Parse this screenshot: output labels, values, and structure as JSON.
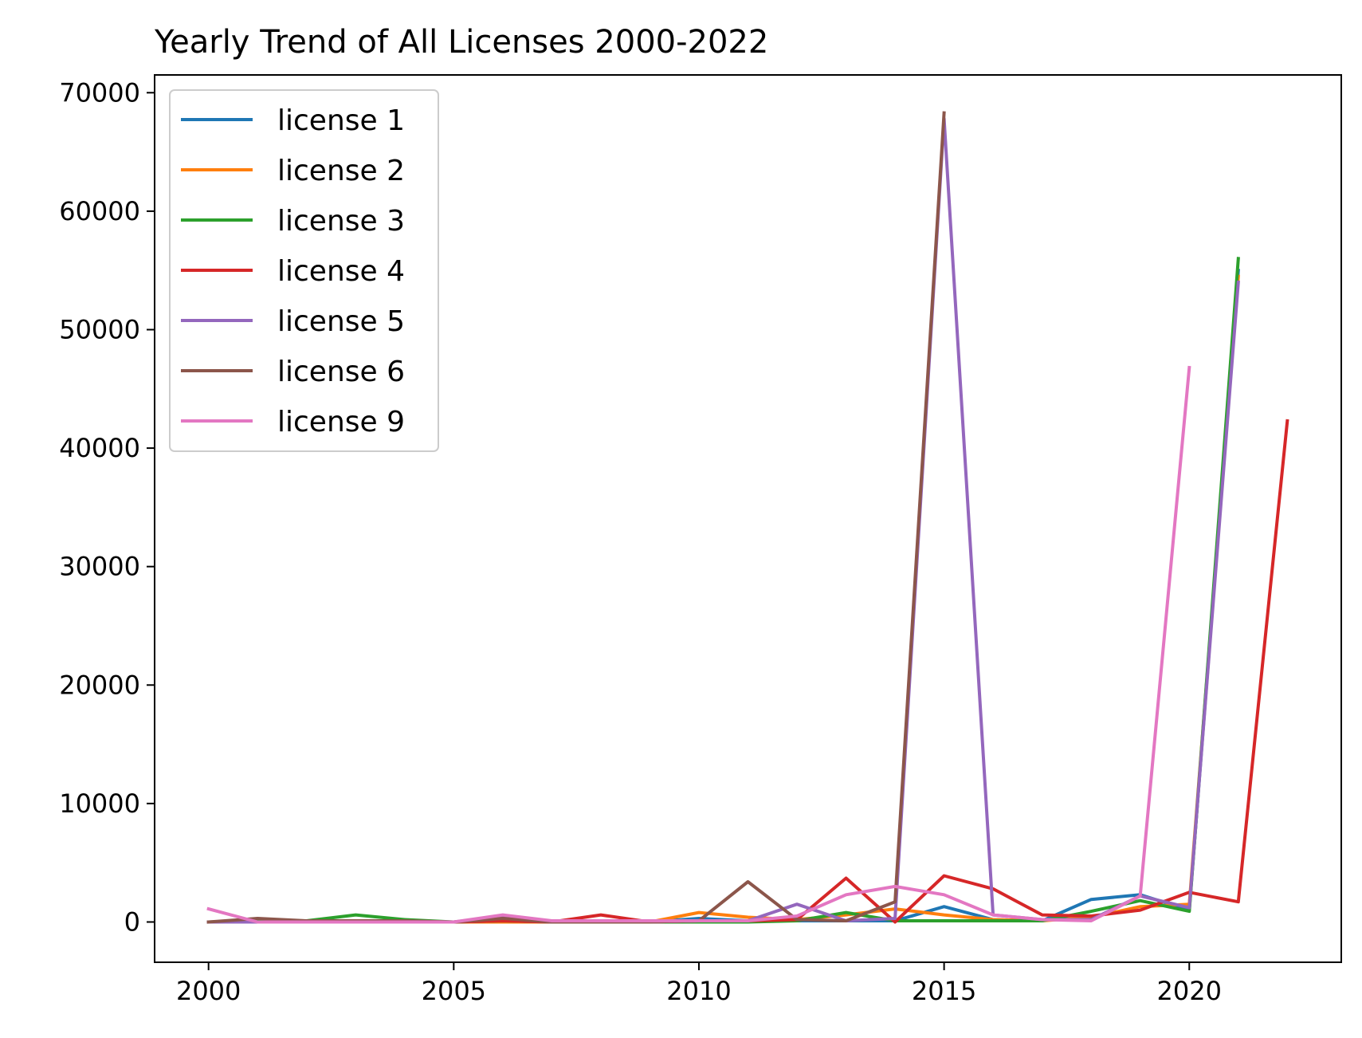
{
  "chart_data": {
    "type": "line",
    "title": "Yearly Trend of All Licenses 2000-2022",
    "xlabel": "",
    "ylabel": "",
    "xlim": [
      1998.9,
      2023.1
    ],
    "ylim": [
      -3400,
      71500
    ],
    "x_ticks": [
      2000,
      2005,
      2010,
      2015,
      2020
    ],
    "y_ticks": [
      0,
      10000,
      20000,
      30000,
      40000,
      50000,
      60000,
      70000
    ],
    "legend_position": "upper-left",
    "grid": false,
    "series": [
      {
        "name": "license 1",
        "color": "#1f77b4",
        "x": [
          2000,
          2001,
          2002,
          2003,
          2004,
          2005,
          2006,
          2007,
          2008,
          2009,
          2010,
          2011,
          2012,
          2013,
          2014,
          2015,
          2016,
          2017,
          2018,
          2019,
          2020,
          2021
        ],
        "values": [
          0,
          0,
          0,
          0,
          0,
          0,
          0,
          0,
          0,
          0,
          300,
          100,
          100,
          100,
          100,
          1300,
          200,
          100,
          1900,
          2300,
          1000,
          55000
        ]
      },
      {
        "name": "license 2",
        "color": "#ff7f0e",
        "x": [
          2000,
          2001,
          2002,
          2003,
          2004,
          2005,
          2006,
          2007,
          2008,
          2009,
          2010,
          2011,
          2012,
          2013,
          2014,
          2015,
          2016,
          2017,
          2018,
          2019,
          2020,
          2021
        ],
        "values": [
          0,
          0,
          0,
          0,
          0,
          0,
          0,
          0,
          0,
          0,
          800,
          400,
          200,
          600,
          1100,
          600,
          200,
          100,
          400,
          1300,
          1500,
          54500
        ]
      },
      {
        "name": "license 3",
        "color": "#2ca02c",
        "x": [
          2000,
          2001,
          2002,
          2003,
          2004,
          2005,
          2006,
          2007,
          2008,
          2009,
          2010,
          2011,
          2012,
          2013,
          2014,
          2015,
          2016,
          2017,
          2018,
          2019,
          2020,
          2021
        ],
        "values": [
          0,
          100,
          100,
          600,
          200,
          0,
          100,
          0,
          0,
          0,
          0,
          0,
          100,
          800,
          100,
          100,
          100,
          100,
          900,
          1800,
          900,
          56000
        ]
      },
      {
        "name": "license 4",
        "color": "#d62728",
        "x": [
          2000,
          2001,
          2002,
          2003,
          2004,
          2005,
          2006,
          2007,
          2008,
          2009,
          2010,
          2011,
          2012,
          2013,
          2014,
          2015,
          2016,
          2017,
          2018,
          2019,
          2020,
          2021,
          2022
        ],
        "values": [
          0,
          0,
          0,
          0,
          0,
          0,
          100,
          0,
          600,
          0,
          100,
          100,
          200,
          3700,
          0,
          3900,
          2800,
          600,
          500,
          1000,
          2500,
          1700,
          42300
        ]
      },
      {
        "name": "license 5",
        "color": "#9467bd",
        "x": [
          2000,
          2001,
          2002,
          2003,
          2004,
          2005,
          2006,
          2007,
          2008,
          2009,
          2010,
          2011,
          2012,
          2013,
          2014,
          2015,
          2016,
          2017,
          2018,
          2019,
          2020,
          2021
        ],
        "values": [
          0,
          0,
          0,
          0,
          0,
          0,
          500,
          0,
          0,
          0,
          100,
          100,
          1500,
          100,
          300,
          67800,
          600,
          200,
          200,
          2200,
          1200,
          54000
        ]
      },
      {
        "name": "license 6",
        "color": "#8c564b",
        "x": [
          2000,
          2001,
          2002,
          2003,
          2004,
          2005,
          2006,
          2007,
          2008,
          2009,
          2010,
          2011,
          2012,
          2013,
          2014,
          2015
        ],
        "values": [
          0,
          300,
          100,
          100,
          100,
          0,
          300,
          0,
          0,
          0,
          100,
          3400,
          200,
          100,
          1700,
          68300
        ]
      },
      {
        "name": "license 9",
        "color": "#e377c2",
        "x": [
          2000,
          2001,
          2002,
          2003,
          2004,
          2005,
          2006,
          2007,
          2008,
          2009,
          2010,
          2011,
          2012,
          2013,
          2014,
          2015,
          2016,
          2017,
          2018,
          2019,
          2020
        ],
        "values": [
          1100,
          0,
          0,
          0,
          0,
          0,
          600,
          100,
          100,
          100,
          100,
          100,
          500,
          2300,
          3000,
          2300,
          600,
          200,
          100,
          2200,
          46800
        ]
      }
    ]
  }
}
